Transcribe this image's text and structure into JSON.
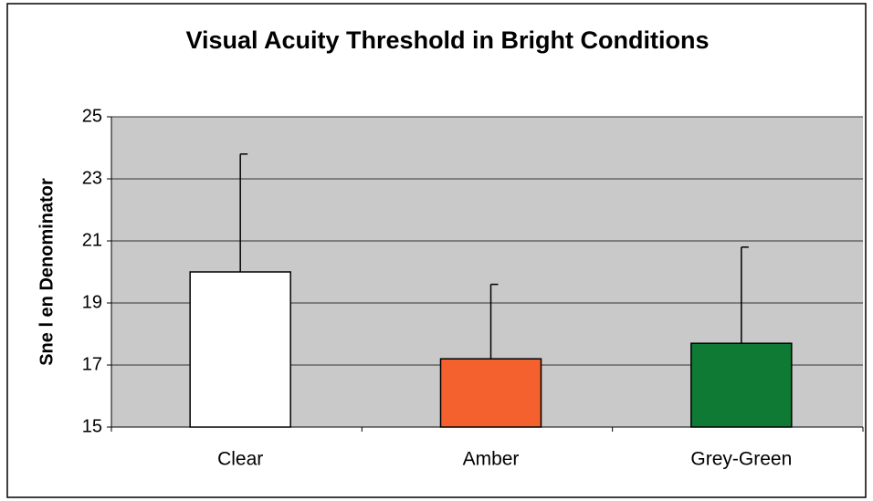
{
  "chart_data": {
    "type": "bar",
    "title": "Visual Acuity Threshold in Bright Conditions",
    "y_label": "Sne l en Denominator",
    "categories": [
      "Clear",
      "Amber",
      "Grey-Green"
    ],
    "values": [
      20.0,
      17.2,
      17.7
    ],
    "errors": [
      3.8,
      2.4,
      3.1
    ],
    "colors": [
      "#ffffff",
      "#f4612e",
      "#0e7a34"
    ],
    "ylim": [
      15,
      25
    ],
    "yticks": [
      15,
      17,
      19,
      21,
      23,
      25
    ],
    "grid": true
  }
}
